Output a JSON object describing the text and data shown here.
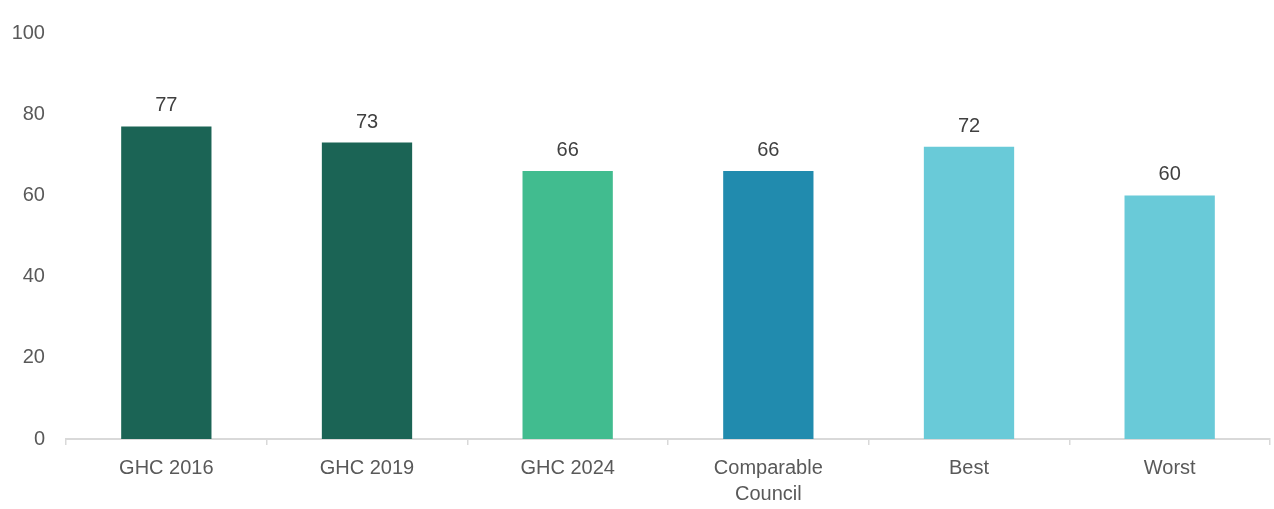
{
  "chart_data": {
    "type": "bar",
    "categories": [
      "GHC 2016",
      "GHC 2019",
      "GHC 2024",
      "Comparable Council",
      "Best",
      "Worst"
    ],
    "values": [
      77,
      73,
      66,
      66,
      72,
      60
    ],
    "colors": [
      "#1b6455",
      "#1b6455",
      "#41bc8f",
      "#218bae",
      "#69cad8",
      "#69cad8"
    ],
    "ylim": [
      0,
      100
    ],
    "yticks": [
      0,
      20,
      40,
      60,
      80,
      100
    ],
    "data_labels": true
  }
}
